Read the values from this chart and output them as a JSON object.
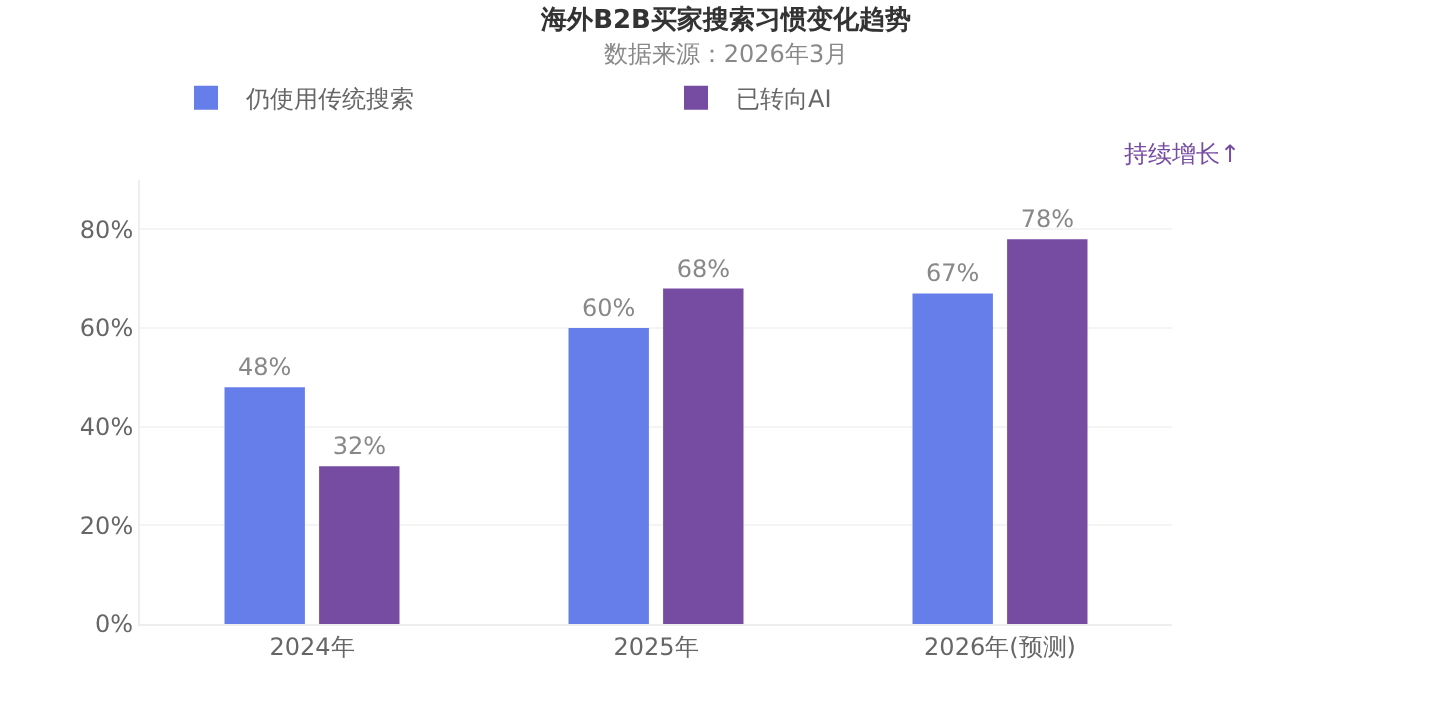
{
  "chart_data": {
    "type": "bar",
    "title": "海外B2B买家搜索习惯变化趋势",
    "subtitle": "数据来源：2026年3月",
    "categories": [
      "2024年",
      "2025年",
      "2026年(预测)"
    ],
    "series": [
      {
        "name": "仍使用传统搜索",
        "color": "#667eea",
        "values": [
          48,
          60,
          67
        ],
        "value_labels": [
          "48%",
          "60%",
          "67%"
        ]
      },
      {
        "name": "已转向AI",
        "color": "#764ba2",
        "values": [
          32,
          68,
          78
        ],
        "value_labels": [
          "32%",
          "68%",
          "78%"
        ]
      }
    ],
    "ylim": [
      0,
      90
    ],
    "yticks": [
      {
        "value": 0,
        "label": "0%"
      },
      {
        "value": 20,
        "label": "20%"
      },
      {
        "value": 40,
        "label": "40%"
      },
      {
        "value": 60,
        "label": "60%"
      },
      {
        "value": 80,
        "label": "80%"
      }
    ],
    "grid": "y",
    "legend": "top",
    "annotations": [
      "持续增长↑"
    ]
  }
}
